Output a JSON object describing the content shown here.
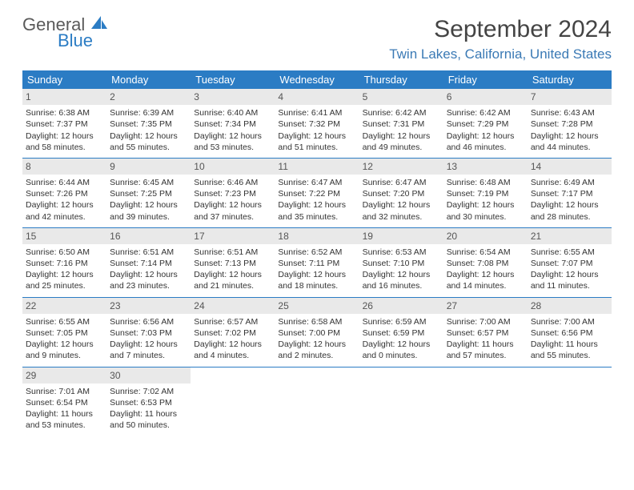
{
  "logo": {
    "gray": "General",
    "blue": "Blue"
  },
  "title": "September 2024",
  "location": "Twin Lakes, California, United States",
  "header_color": "#2b7cc4",
  "daynum_bg": "#e9e9e9",
  "weekdays": [
    "Sunday",
    "Monday",
    "Tuesday",
    "Wednesday",
    "Thursday",
    "Friday",
    "Saturday"
  ],
  "weeks": [
    [
      {
        "n": "1",
        "sr": "Sunrise: 6:38 AM",
        "ss": "Sunset: 7:37 PM",
        "d1": "Daylight: 12 hours",
        "d2": "and 58 minutes."
      },
      {
        "n": "2",
        "sr": "Sunrise: 6:39 AM",
        "ss": "Sunset: 7:35 PM",
        "d1": "Daylight: 12 hours",
        "d2": "and 55 minutes."
      },
      {
        "n": "3",
        "sr": "Sunrise: 6:40 AM",
        "ss": "Sunset: 7:34 PM",
        "d1": "Daylight: 12 hours",
        "d2": "and 53 minutes."
      },
      {
        "n": "4",
        "sr": "Sunrise: 6:41 AM",
        "ss": "Sunset: 7:32 PM",
        "d1": "Daylight: 12 hours",
        "d2": "and 51 minutes."
      },
      {
        "n": "5",
        "sr": "Sunrise: 6:42 AM",
        "ss": "Sunset: 7:31 PM",
        "d1": "Daylight: 12 hours",
        "d2": "and 49 minutes."
      },
      {
        "n": "6",
        "sr": "Sunrise: 6:42 AM",
        "ss": "Sunset: 7:29 PM",
        "d1": "Daylight: 12 hours",
        "d2": "and 46 minutes."
      },
      {
        "n": "7",
        "sr": "Sunrise: 6:43 AM",
        "ss": "Sunset: 7:28 PM",
        "d1": "Daylight: 12 hours",
        "d2": "and 44 minutes."
      }
    ],
    [
      {
        "n": "8",
        "sr": "Sunrise: 6:44 AM",
        "ss": "Sunset: 7:26 PM",
        "d1": "Daylight: 12 hours",
        "d2": "and 42 minutes."
      },
      {
        "n": "9",
        "sr": "Sunrise: 6:45 AM",
        "ss": "Sunset: 7:25 PM",
        "d1": "Daylight: 12 hours",
        "d2": "and 39 minutes."
      },
      {
        "n": "10",
        "sr": "Sunrise: 6:46 AM",
        "ss": "Sunset: 7:23 PM",
        "d1": "Daylight: 12 hours",
        "d2": "and 37 minutes."
      },
      {
        "n": "11",
        "sr": "Sunrise: 6:47 AM",
        "ss": "Sunset: 7:22 PM",
        "d1": "Daylight: 12 hours",
        "d2": "and 35 minutes."
      },
      {
        "n": "12",
        "sr": "Sunrise: 6:47 AM",
        "ss": "Sunset: 7:20 PM",
        "d1": "Daylight: 12 hours",
        "d2": "and 32 minutes."
      },
      {
        "n": "13",
        "sr": "Sunrise: 6:48 AM",
        "ss": "Sunset: 7:19 PM",
        "d1": "Daylight: 12 hours",
        "d2": "and 30 minutes."
      },
      {
        "n": "14",
        "sr": "Sunrise: 6:49 AM",
        "ss": "Sunset: 7:17 PM",
        "d1": "Daylight: 12 hours",
        "d2": "and 28 minutes."
      }
    ],
    [
      {
        "n": "15",
        "sr": "Sunrise: 6:50 AM",
        "ss": "Sunset: 7:16 PM",
        "d1": "Daylight: 12 hours",
        "d2": "and 25 minutes."
      },
      {
        "n": "16",
        "sr": "Sunrise: 6:51 AM",
        "ss": "Sunset: 7:14 PM",
        "d1": "Daylight: 12 hours",
        "d2": "and 23 minutes."
      },
      {
        "n": "17",
        "sr": "Sunrise: 6:51 AM",
        "ss": "Sunset: 7:13 PM",
        "d1": "Daylight: 12 hours",
        "d2": "and 21 minutes."
      },
      {
        "n": "18",
        "sr": "Sunrise: 6:52 AM",
        "ss": "Sunset: 7:11 PM",
        "d1": "Daylight: 12 hours",
        "d2": "and 18 minutes."
      },
      {
        "n": "19",
        "sr": "Sunrise: 6:53 AM",
        "ss": "Sunset: 7:10 PM",
        "d1": "Daylight: 12 hours",
        "d2": "and 16 minutes."
      },
      {
        "n": "20",
        "sr": "Sunrise: 6:54 AM",
        "ss": "Sunset: 7:08 PM",
        "d1": "Daylight: 12 hours",
        "d2": "and 14 minutes."
      },
      {
        "n": "21",
        "sr": "Sunrise: 6:55 AM",
        "ss": "Sunset: 7:07 PM",
        "d1": "Daylight: 12 hours",
        "d2": "and 11 minutes."
      }
    ],
    [
      {
        "n": "22",
        "sr": "Sunrise: 6:55 AM",
        "ss": "Sunset: 7:05 PM",
        "d1": "Daylight: 12 hours",
        "d2": "and 9 minutes."
      },
      {
        "n": "23",
        "sr": "Sunrise: 6:56 AM",
        "ss": "Sunset: 7:03 PM",
        "d1": "Daylight: 12 hours",
        "d2": "and 7 minutes."
      },
      {
        "n": "24",
        "sr": "Sunrise: 6:57 AM",
        "ss": "Sunset: 7:02 PM",
        "d1": "Daylight: 12 hours",
        "d2": "and 4 minutes."
      },
      {
        "n": "25",
        "sr": "Sunrise: 6:58 AM",
        "ss": "Sunset: 7:00 PM",
        "d1": "Daylight: 12 hours",
        "d2": "and 2 minutes."
      },
      {
        "n": "26",
        "sr": "Sunrise: 6:59 AM",
        "ss": "Sunset: 6:59 PM",
        "d1": "Daylight: 12 hours",
        "d2": "and 0 minutes."
      },
      {
        "n": "27",
        "sr": "Sunrise: 7:00 AM",
        "ss": "Sunset: 6:57 PM",
        "d1": "Daylight: 11 hours",
        "d2": "and 57 minutes."
      },
      {
        "n": "28",
        "sr": "Sunrise: 7:00 AM",
        "ss": "Sunset: 6:56 PM",
        "d1": "Daylight: 11 hours",
        "d2": "and 55 minutes."
      }
    ],
    [
      {
        "n": "29",
        "sr": "Sunrise: 7:01 AM",
        "ss": "Sunset: 6:54 PM",
        "d1": "Daylight: 11 hours",
        "d2": "and 53 minutes."
      },
      {
        "n": "30",
        "sr": "Sunrise: 7:02 AM",
        "ss": "Sunset: 6:53 PM",
        "d1": "Daylight: 11 hours",
        "d2": "and 50 minutes."
      },
      null,
      null,
      null,
      null,
      null
    ]
  ]
}
